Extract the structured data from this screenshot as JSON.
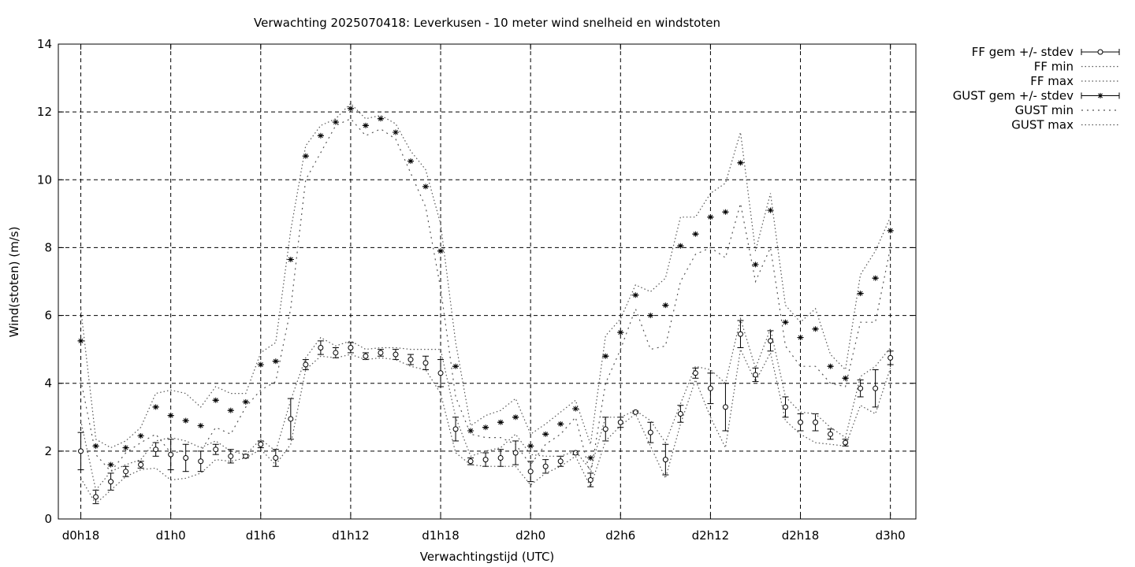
{
  "chart_data": {
    "type": "line",
    "title": "Verwachting 2025070418: Leverkusen - 10 meter wind snelheid en windstoten",
    "xlabel": "Verwachtingstijd (UTC)",
    "ylabel": "Wind(stoten) (m/s)",
    "ylim": [
      0,
      14
    ],
    "yticks": [
      "0",
      "2",
      "4",
      "6",
      "8",
      "10",
      "12",
      "14"
    ],
    "xlim": [
      -1.5,
      55.7
    ],
    "xtick_positions": [
      0,
      6,
      12,
      18,
      24,
      30,
      36,
      42,
      48,
      54
    ],
    "xtick_labels": [
      "d0h18",
      "d1h0",
      "d1h6",
      "d1h12",
      "d1h18",
      "d2h0",
      "d2h6",
      "d2h12",
      "d2h18",
      "d3h0"
    ],
    "grid": true,
    "legend_position": "outside-top-right",
    "x": [
      0,
      1,
      2,
      3,
      4,
      5,
      6,
      7,
      8,
      9,
      10,
      11,
      12,
      13,
      14,
      15,
      16,
      17,
      18,
      19,
      20,
      21,
      22,
      23,
      24,
      25,
      26,
      27,
      28,
      29,
      30,
      31,
      32,
      33,
      34,
      35,
      36,
      37,
      38,
      39,
      40,
      41,
      42,
      43,
      44,
      45,
      46,
      47,
      48,
      49,
      50,
      51,
      52,
      53,
      54
    ],
    "series": [
      {
        "name": "FF gem +/- stdev",
        "style": "points-errorbars",
        "marker": "circle",
        "values": [
          2.0,
          0.65,
          1.1,
          1.4,
          1.6,
          2.05,
          1.9,
          1.8,
          1.7,
          2.05,
          1.85,
          1.85,
          2.2,
          1.8,
          2.95,
          4.55,
          5.05,
          4.9,
          5.05,
          4.8,
          4.9,
          4.85,
          4.7,
          4.6,
          4.3,
          2.65,
          1.7,
          1.75,
          1.8,
          1.95,
          1.4,
          1.55,
          1.7,
          1.95,
          1.15,
          2.65,
          2.85,
          3.15,
          2.55,
          1.75,
          3.1,
          4.3,
          3.85,
          3.3,
          5.45,
          4.25,
          5.25,
          3.3,
          2.85,
          2.85,
          2.5,
          2.25,
          3.85,
          3.85,
          4.75
        ],
        "stdev": [
          0.55,
          0.2,
          0.25,
          0.15,
          0.1,
          0.2,
          0.45,
          0.4,
          0.3,
          0.15,
          0.2,
          0.05,
          0.1,
          0.25,
          0.6,
          0.15,
          0.2,
          0.15,
          0.15,
          0.1,
          0.1,
          0.15,
          0.15,
          0.2,
          0.4,
          0.35,
          0.1,
          0.2,
          0.25,
          0.35,
          0.3,
          0.2,
          0.15,
          0.05,
          0.2,
          0.35,
          0.15,
          0.03,
          0.3,
          0.45,
          0.25,
          0.15,
          0.45,
          0.7,
          0.4,
          0.2,
          0.3,
          0.3,
          0.25,
          0.25,
          0.15,
          0.1,
          0.25,
          0.55,
          0.2
        ]
      },
      {
        "name": "FF min",
        "style": "dotted",
        "values": [
          1.2,
          0.45,
          0.85,
          1.25,
          1.45,
          1.5,
          1.15,
          1.2,
          1.35,
          1.75,
          1.7,
          1.8,
          2.05,
          1.6,
          2.2,
          4.4,
          4.8,
          4.75,
          4.85,
          4.7,
          4.75,
          4.7,
          4.5,
          4.4,
          3.7,
          1.95,
          1.6,
          1.55,
          1.55,
          1.55,
          1.0,
          1.35,
          1.55,
          1.85,
          0.95,
          2.3,
          2.75,
          3.1,
          2.15,
          1.2,
          2.8,
          4.1,
          3.0,
          2.1,
          5.0,
          4.05,
          4.9,
          2.9,
          2.5,
          2.25,
          2.2,
          2.15,
          3.35,
          3.1,
          4.45
        ]
      },
      {
        "name": "FF max",
        "style": "dotted",
        "values": [
          2.9,
          0.85,
          1.4,
          1.6,
          1.75,
          2.3,
          2.4,
          2.3,
          2.1,
          2.3,
          2.0,
          1.9,
          2.35,
          2.0,
          3.5,
          4.75,
          5.35,
          5.1,
          5.25,
          5.0,
          5.05,
          5.05,
          5.0,
          5.0,
          5.0,
          3.0,
          1.85,
          2.0,
          2.1,
          2.5,
          1.9,
          1.85,
          1.85,
          2.0,
          1.45,
          3.0,
          3.0,
          3.2,
          2.9,
          2.25,
          3.4,
          4.5,
          4.4,
          4.0,
          5.9,
          4.45,
          5.6,
          3.6,
          3.15,
          3.1,
          2.7,
          2.4,
          4.2,
          4.5,
          5.05
        ]
      },
      {
        "name": "GUST gem +/- stdev",
        "style": "points-errorbars",
        "marker": "star",
        "values": [
          5.25,
          2.15,
          1.6,
          2.1,
          2.45,
          3.3,
          3.05,
          2.9,
          2.75,
          3.5,
          3.2,
          3.45,
          4.55,
          4.65,
          7.65,
          10.7,
          11.3,
          11.7,
          12.1,
          11.6,
          11.8,
          11.4,
          10.55,
          9.8,
          7.9,
          4.5,
          2.6,
          2.7,
          2.85,
          3.0,
          2.15,
          2.5,
          2.8,
          3.25,
          1.8,
          4.8,
          5.5,
          6.6,
          6.0,
          6.3,
          8.05,
          8.4,
          8.9,
          9.05,
          10.5,
          7.5,
          9.1,
          5.8,
          5.35,
          5.6,
          4.5,
          4.15,
          6.65,
          7.1,
          8.5
        ]
      },
      {
        "name": "GUST min",
        "style": "dotted",
        "values": [
          4.1,
          1.9,
          1.4,
          1.95,
          2.25,
          2.5,
          1.95,
          2.0,
          2.0,
          2.7,
          2.5,
          3.3,
          3.8,
          4.05,
          6.2,
          10.0,
          10.8,
          11.6,
          11.8,
          11.3,
          11.5,
          11.2,
          10.2,
          9.2,
          6.8,
          3.6,
          2.5,
          2.4,
          2.4,
          2.2,
          1.6,
          2.2,
          2.5,
          3.0,
          1.3,
          4.0,
          5.0,
          6.2,
          5.0,
          5.1,
          7.0,
          7.8,
          8.0,
          7.7,
          9.3,
          7.0,
          8.0,
          5.1,
          4.5,
          4.5,
          4.0,
          3.9,
          5.8,
          5.8,
          8.0
        ]
      },
      {
        "name": "GUST max",
        "style": "dotted",
        "values": [
          6.2,
          2.35,
          2.1,
          2.3,
          2.7,
          3.7,
          3.8,
          3.7,
          3.3,
          3.9,
          3.7,
          3.7,
          4.9,
          5.2,
          8.5,
          11.0,
          11.6,
          11.8,
          12.25,
          11.8,
          11.9,
          11.65,
          10.85,
          10.3,
          8.7,
          5.2,
          2.75,
          3.05,
          3.2,
          3.55,
          2.5,
          2.8,
          3.15,
          3.5,
          2.2,
          5.4,
          5.9,
          6.9,
          6.7,
          7.1,
          8.9,
          8.9,
          9.6,
          9.9,
          11.4,
          7.9,
          9.6,
          6.3,
          5.8,
          6.2,
          4.85,
          4.4,
          7.2,
          7.9,
          8.9
        ]
      }
    ]
  }
}
